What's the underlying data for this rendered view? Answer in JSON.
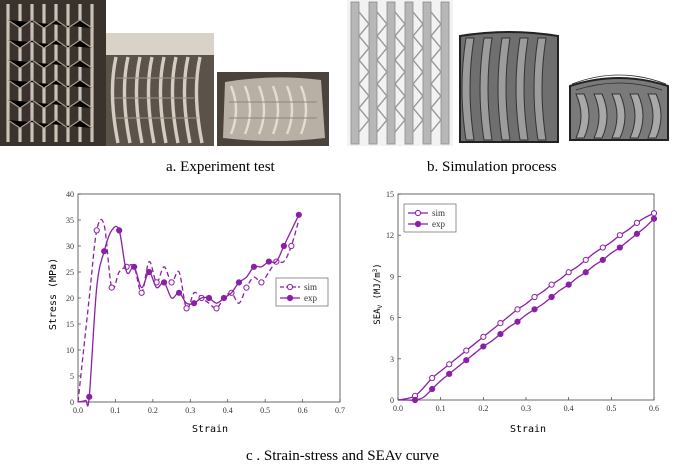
{
  "captions": {
    "a": "a. Experiment test",
    "b": "b. Simulation process",
    "c": "c . Strain-stress and SEAv curve"
  },
  "colors": {
    "curve": "#8b1fa8",
    "curve_light": "#a24fc4"
  },
  "chart_data": [
    {
      "type": "line",
      "xlabel": "Strain",
      "ylabel": "Stress (MPa)",
      "xlim": [
        0,
        0.7
      ],
      "ylim": [
        0,
        40
      ],
      "xticks": [
        "0.0",
        "0.1",
        "0.2",
        "0.3",
        "0.4",
        "0.5",
        "0.6",
        "0.7"
      ],
      "yticks": [
        "0",
        "5",
        "10",
        "15",
        "20",
        "25",
        "30",
        "35",
        "40"
      ],
      "legend": [
        "sim",
        "exp"
      ],
      "legend_position": "center-right",
      "series": [
        {
          "name": "sim",
          "style": "dashed",
          "marker": "open-circle",
          "x": [
            0,
            0.03,
            0.05,
            0.07,
            0.09,
            0.11,
            0.13,
            0.15,
            0.17,
            0.19,
            0.21,
            0.23,
            0.25,
            0.27,
            0.29,
            0.31,
            0.33,
            0.35,
            0.37,
            0.39,
            0.41,
            0.43,
            0.45,
            0.47,
            0.49,
            0.51,
            0.53,
            0.55,
            0.57,
            0.59
          ],
          "y": [
            0,
            20,
            33,
            34,
            22,
            25,
            26,
            26,
            21,
            27,
            23,
            26,
            23,
            25,
            18,
            21,
            20,
            19,
            18,
            20,
            21,
            19,
            22,
            24,
            23,
            25,
            27,
            27,
            30,
            35
          ]
        },
        {
          "name": "exp",
          "style": "solid",
          "marker": "filled-circle",
          "x": [
            0,
            0.02,
            0.03,
            0.05,
            0.07,
            0.09,
            0.11,
            0.13,
            0.15,
            0.17,
            0.19,
            0.21,
            0.23,
            0.25,
            0.27,
            0.29,
            0.31,
            0.33,
            0.35,
            0.37,
            0.39,
            0.41,
            0.43,
            0.45,
            0.47,
            0.49,
            0.51,
            0.53,
            0.55,
            0.57,
            0.59
          ],
          "y": [
            0,
            0.3,
            1,
            22,
            29,
            33,
            33,
            25,
            26,
            22,
            25,
            22,
            23,
            20,
            21,
            19,
            19,
            20,
            20,
            19,
            20,
            21,
            23,
            24,
            26,
            26,
            27,
            27,
            30,
            33,
            36
          ]
        }
      ]
    },
    {
      "type": "line",
      "xlabel": "Strain",
      "ylabel": "SEAv (MJ/m³)",
      "ylabel_main": "SEA",
      "ylabel_sub": "V",
      "ylabel_units": " (MJ/m",
      "ylabel_sup": "3",
      "ylabel_close": ")",
      "xlim": [
        0,
        0.6
      ],
      "ylim": [
        0,
        15
      ],
      "xticks": [
        "0.0",
        "0.1",
        "0.2",
        "0.3",
        "0.4",
        "0.5",
        "0.6"
      ],
      "yticks": [
        "0",
        "3",
        "6",
        "9",
        "12",
        "15"
      ],
      "legend": [
        "sim",
        "exp"
      ],
      "legend_position": "top-left",
      "series": [
        {
          "name": "sim",
          "style": "solid",
          "marker": "open-circle",
          "x": [
            0,
            0.02,
            0.04,
            0.06,
            0.08,
            0.1,
            0.12,
            0.14,
            0.16,
            0.18,
            0.2,
            0.22,
            0.24,
            0.26,
            0.28,
            0.3,
            0.32,
            0.34,
            0.36,
            0.38,
            0.4,
            0.42,
            0.44,
            0.46,
            0.48,
            0.5,
            0.52,
            0.54,
            0.56,
            0.58,
            0.6
          ],
          "y": [
            0,
            0.1,
            0.3,
            0.9,
            1.6,
            2.1,
            2.6,
            3.1,
            3.6,
            4.1,
            4.6,
            5.1,
            5.6,
            6.1,
            6.6,
            7.0,
            7.5,
            7.9,
            8.4,
            8.8,
            9.3,
            9.7,
            10.2,
            10.7,
            11.1,
            11.5,
            12.0,
            12.4,
            12.9,
            13.3,
            13.6
          ]
        },
        {
          "name": "exp",
          "style": "solid",
          "marker": "filled-circle",
          "x": [
            0,
            0.02,
            0.04,
            0.06,
            0.08,
            0.1,
            0.12,
            0.14,
            0.16,
            0.18,
            0.2,
            0.22,
            0.24,
            0.26,
            0.28,
            0.3,
            0.32,
            0.34,
            0.36,
            0.38,
            0.4,
            0.42,
            0.44,
            0.46,
            0.48,
            0.5,
            0.52,
            0.54,
            0.56,
            0.58,
            0.6
          ],
          "y": [
            0,
            0,
            0,
            0.2,
            0.8,
            1.4,
            1.9,
            2.4,
            2.9,
            3.4,
            3.9,
            4.3,
            4.8,
            5.3,
            5.7,
            6.2,
            6.6,
            7.0,
            7.5,
            8.0,
            8.4,
            8.9,
            9.3,
            9.8,
            10.2,
            10.7,
            11.1,
            11.6,
            12.1,
            12.6,
            13.2
          ]
        }
      ]
    }
  ]
}
